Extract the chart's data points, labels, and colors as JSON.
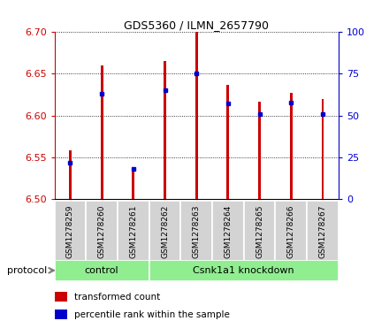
{
  "title": "GDS5360 / ILMN_2657790",
  "samples": [
    "GSM1278259",
    "GSM1278260",
    "GSM1278261",
    "GSM1278262",
    "GSM1278263",
    "GSM1278264",
    "GSM1278265",
    "GSM1278266",
    "GSM1278267"
  ],
  "transformed_count": [
    6.558,
    6.66,
    6.535,
    6.665,
    6.7,
    6.637,
    6.617,
    6.627,
    6.62
  ],
  "percentile_rank": [
    22,
    63,
    18,
    65,
    75,
    57,
    51,
    58,
    51
  ],
  "ylim_left": [
    6.5,
    6.7
  ],
  "ylim_right": [
    0,
    100
  ],
  "yticks_left": [
    6.5,
    6.55,
    6.6,
    6.65,
    6.7
  ],
  "yticks_right": [
    0,
    25,
    50,
    75,
    100
  ],
  "bar_color": "#cc0000",
  "dot_color": "#0000cc",
  "control_samples": 3,
  "control_label": "control",
  "treatment_label": "Csnk1a1 knockdown",
  "protocol_label": "protocol",
  "group_color": "#90ee90",
  "tick_label_color_left": "#cc0000",
  "tick_label_color_right": "#0000cc",
  "legend_bar_label": "transformed count",
  "legend_dot_label": "percentile rank within the sample",
  "bar_width": 0.08,
  "base_value": 6.5
}
